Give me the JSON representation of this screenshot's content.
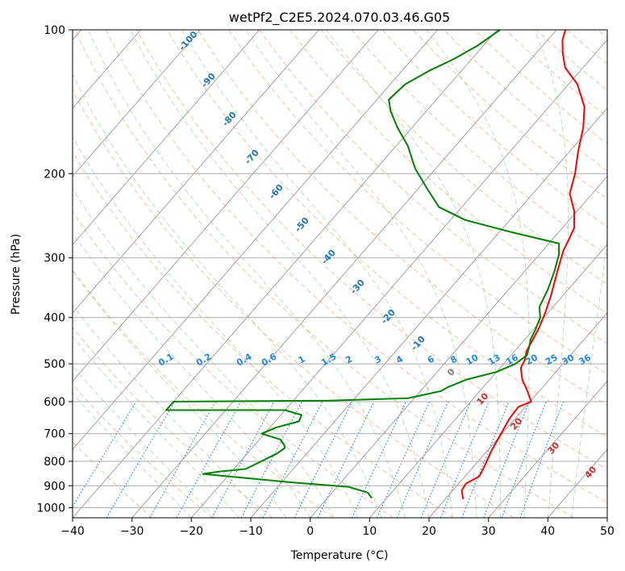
{
  "chart_data": {
    "type": "line",
    "title": "wetPf2_C2E5.2024.070.03.46.G05",
    "xlabel": "Temperature (°C)",
    "ylabel": "Pressure (hPa)",
    "xlim": [
      -40,
      50
    ],
    "ylim": [
      1050,
      100
    ],
    "y_scale": "log",
    "grid": true,
    "x_ticks": [
      -40,
      -30,
      -20,
      -10,
      0,
      10,
      20,
      30,
      40,
      50
    ],
    "y_ticks": [
      1000,
      900,
      800,
      700,
      600,
      500,
      400,
      300,
      200,
      100
    ],
    "isotherm_labels": [
      "-100",
      "-90",
      "-80",
      "-70",
      "-60",
      "-50",
      "-40",
      "-30",
      "-20",
      "-10",
      "0",
      "10",
      "20",
      "30",
      "40"
    ],
    "mixing_ratio_labels": [
      "0.1",
      "0.2",
      "0.4",
      "0.6",
      "1",
      "1.5",
      "2",
      "3",
      "4",
      "6",
      "8",
      "10",
      "13",
      "16",
      "20",
      "25",
      "30",
      "36"
    ],
    "colors": {
      "temperature": "#ff0000",
      "dewpoint": "#008000",
      "dry_adiabat": "#f4a582",
      "moist_adiabat": "#a6d8a6",
      "mixing_ratio": "#1e88e5",
      "isotherm": "#808080",
      "isotherm_label_cold": "#1f77b4",
      "isotherm_label_zero": "#808080",
      "isotherm_label_warm": "#d62728"
    },
    "series": [
      {
        "key": "temperature",
        "points": [
          [
            23.0,
            960
          ],
          [
            21.5,
            920
          ],
          [
            21.2,
            890
          ],
          [
            22.4,
            860
          ],
          [
            21.8,
            820
          ],
          [
            20.7,
            760
          ],
          [
            19.8,
            700
          ],
          [
            19.0,
            650
          ],
          [
            18.8,
            615
          ],
          [
            20.2,
            600
          ],
          [
            18.0,
            570
          ],
          [
            15.5,
            540
          ],
          [
            13.5,
            510
          ],
          [
            13.0,
            490
          ],
          [
            12.0,
            470
          ],
          [
            11.4,
            445
          ],
          [
            10.7,
            420
          ],
          [
            9.5,
            390
          ],
          [
            8.0,
            360
          ],
          [
            5.5,
            320
          ],
          [
            3.5,
            290
          ],
          [
            2.8,
            275
          ],
          [
            2.0,
            260
          ],
          [
            -0.4,
            240
          ],
          [
            -3.8,
            220
          ],
          [
            -5.8,
            200
          ],
          [
            -8.5,
            180
          ],
          [
            -11.2,
            160
          ],
          [
            -14.0,
            145
          ],
          [
            -18.5,
            130
          ],
          [
            -23.0,
            120
          ],
          [
            -25.5,
            112
          ],
          [
            -27.5,
            105
          ],
          [
            -28.5,
            100
          ]
        ]
      },
      {
        "key": "dewpoint",
        "points": [
          [
            7.5,
            955
          ],
          [
            6.0,
            930
          ],
          [
            2.0,
            905
          ],
          [
            -8.5,
            885
          ],
          [
            -24.5,
            850
          ],
          [
            -22.0,
            840
          ],
          [
            -18.0,
            830
          ],
          [
            -16.5,
            800
          ],
          [
            -15.0,
            770
          ],
          [
            -14.5,
            750
          ],
          [
            -15.0,
            740
          ],
          [
            -16.5,
            720
          ],
          [
            -20.5,
            700
          ],
          [
            -19.0,
            680
          ],
          [
            -16.0,
            660
          ],
          [
            -16.5,
            640
          ],
          [
            -20.0,
            625
          ],
          [
            -40.0,
            625
          ],
          [
            -40.0,
            600
          ],
          [
            -14.0,
            597
          ],
          [
            -1.0,
            590
          ],
          [
            3.5,
            570
          ],
          [
            4.0,
            560
          ],
          [
            6.0,
            540
          ],
          [
            10.0,
            520
          ],
          [
            12.0,
            500
          ],
          [
            12.7,
            480
          ],
          [
            11.8,
            460
          ],
          [
            11.0,
            445
          ],
          [
            10.4,
            425
          ],
          [
            9.4,
            400
          ],
          [
            7.7,
            380
          ],
          [
            6.6,
            350
          ],
          [
            5.0,
            320
          ],
          [
            3.3,
            295
          ],
          [
            1.7,
            280
          ],
          [
            -8.0,
            265
          ],
          [
            -17.5,
            250
          ],
          [
            -23.8,
            235
          ],
          [
            -28.5,
            215
          ],
          [
            -33.5,
            195
          ],
          [
            -38.0,
            175
          ],
          [
            -42.5,
            160
          ],
          [
            -46.0,
            148
          ],
          [
            -48.0,
            140
          ],
          [
            -47.5,
            130
          ],
          [
            -45.5,
            122
          ],
          [
            -43.0,
            115
          ],
          [
            -41.0,
            108
          ],
          [
            -39.5,
            100
          ]
        ]
      }
    ]
  }
}
